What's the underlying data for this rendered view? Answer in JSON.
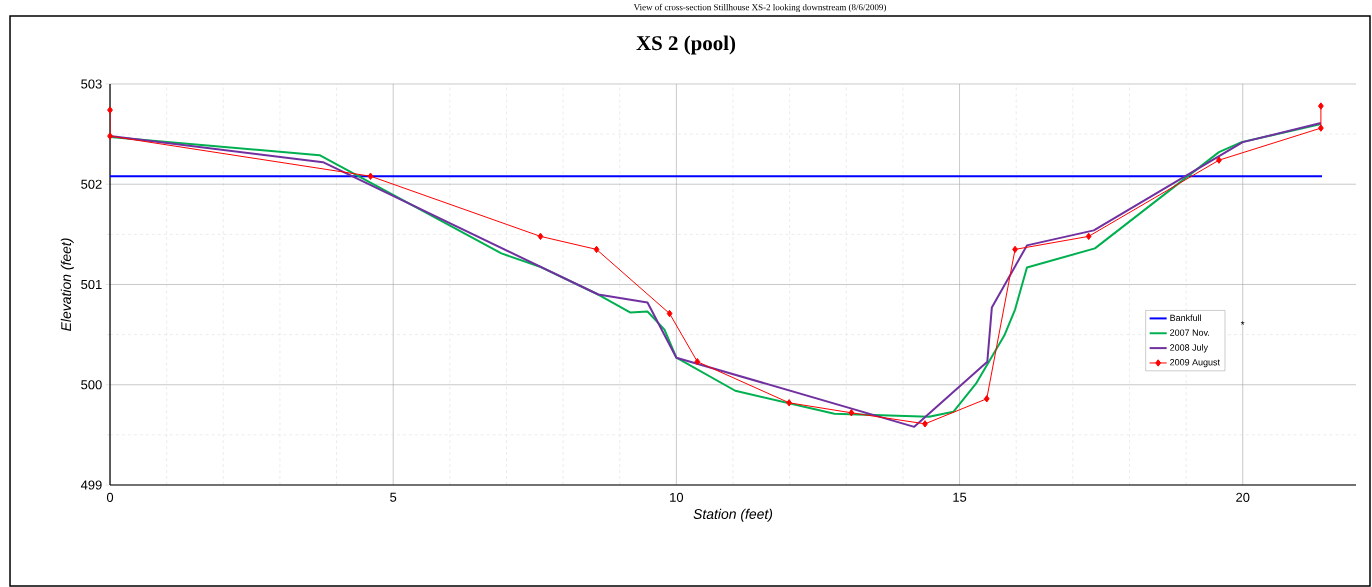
{
  "chart_data": {
    "type": "line",
    "title": "XS 2 (pool)",
    "xlabel": "Station (feet)",
    "ylabel": "Elevation (feet)",
    "annotations": [
      "View of cross-section Stillhouse XS-2 looking downstream (8/6/2009)",
      "*"
    ],
    "xlim": [
      0,
      22
    ],
    "xticks": [
      0,
      5,
      10,
      15,
      20
    ],
    "ylim": [
      499,
      503
    ],
    "yticks": [
      499,
      500,
      501,
      502,
      503
    ],
    "grid": true,
    "legend": "right",
    "series": [
      {
        "name": "Bankfull",
        "color": "#0000ff",
        "marker": "none",
        "x": [
          0,
          21.4
        ],
        "values": [
          502.08,
          502.08
        ]
      },
      {
        "name": "2007 Nov.",
        "color": "#00b050",
        "marker": "none",
        "x": [
          0,
          3.7,
          6.91,
          7.58,
          8.62,
          9.19,
          9.49,
          9.79,
          10.0,
          11.04,
          12.79,
          14.46,
          14.89,
          15.29,
          15.79,
          15.98,
          16.19,
          17.39,
          19.58,
          19.98,
          21.38
        ],
        "values": [
          502.47,
          502.29,
          501.31,
          501.18,
          500.9,
          500.72,
          500.73,
          500.55,
          500.27,
          499.94,
          499.71,
          499.68,
          499.73,
          500.01,
          500.49,
          500.75,
          501.17,
          501.36,
          502.32,
          502.42,
          502.6
        ]
      },
      {
        "name": "2008 July",
        "color": "#7030a0",
        "marker": "none",
        "x": [
          0,
          3.76,
          8.62,
          9.49,
          10.0,
          14.2,
          15.49,
          15.57,
          16.19,
          17.37,
          20.0,
          21.38
        ],
        "values": [
          502.48,
          502.22,
          500.9,
          500.82,
          500.27,
          499.58,
          500.23,
          500.77,
          501.39,
          501.54,
          502.42,
          502.61
        ]
      },
      {
        "name": "2009 August",
        "color": "#ff0000",
        "marker": "diamond",
        "x": [
          0,
          0,
          4.6,
          7.6,
          8.59,
          9.88,
          10.37,
          11.99,
          13.09,
          14.39,
          15.48,
          15.98,
          17.28,
          19.58,
          21.38,
          21.38
        ],
        "values": [
          502.74,
          502.48,
          502.08,
          501.48,
          501.35,
          500.71,
          500.23,
          499.82,
          499.72,
          499.61,
          499.86,
          501.35,
          501.48,
          502.24,
          502.56,
          502.78
        ]
      }
    ]
  }
}
